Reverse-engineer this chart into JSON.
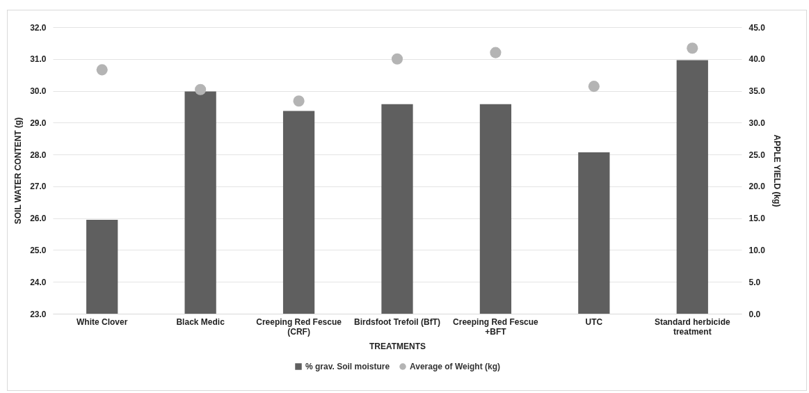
{
  "chart_data": {
    "type": "bar",
    "xlabel": "TREATMENTS",
    "ylabel": "SOIL WATER CONTENT (g)",
    "y2label": "APPLE YIELD (kg)",
    "categories": [
      "White Clover",
      "Black Medic",
      "Creeping Red Fescue (CRF)",
      "Birdsfoot Trefoil (BfT)",
      "Creeping Red Fescue +BFT",
      "UTC",
      "Standard herbicide treatment"
    ],
    "series": [
      {
        "name": "% grav. Soil moisture",
        "color": "#5f5f5f",
        "values": [
          25.95,
          29.98,
          29.37,
          29.58,
          29.58,
          28.07,
          30.96
        ]
      },
      {
        "name": "Average of Weight (kg)",
        "type": "scatter",
        "axis": "y2",
        "color": "#b4b4b4",
        "values": [
          38.3,
          35.2,
          33.4,
          40.0,
          41.0,
          35.7,
          41.7
        ]
      }
    ],
    "ylim": [
      23,
      32
    ],
    "yticks": [
      {
        "value": 23,
        "label": "23.0"
      },
      {
        "value": 24,
        "label": "24.0"
      },
      {
        "value": 25,
        "label": "25.0"
      },
      {
        "value": 26,
        "label": "26.0"
      },
      {
        "value": 27,
        "label": "27.0"
      },
      {
        "value": 28,
        "label": "28.0"
      },
      {
        "value": 29,
        "label": "29.0"
      },
      {
        "value": 30,
        "label": "30.0"
      },
      {
        "value": 31,
        "label": "31.0"
      },
      {
        "value": 32,
        "label": "32.0"
      }
    ],
    "y2lim": [
      0,
      45
    ],
    "y2ticks": [
      {
        "value": 0,
        "label": "0.0"
      },
      {
        "value": 5,
        "label": "5.0"
      },
      {
        "value": 10,
        "label": "10.0"
      },
      {
        "value": 15,
        "label": "15.0"
      },
      {
        "value": 20,
        "label": "20.0"
      },
      {
        "value": 25,
        "label": "25.0"
      },
      {
        "value": 30,
        "label": "30.0"
      },
      {
        "value": 35,
        "label": "35.0"
      },
      {
        "value": 40,
        "label": "40.0"
      },
      {
        "value": 45,
        "label": "45.0"
      }
    ],
    "grid": "y",
    "legend": "bottom",
    "marker": "circle"
  }
}
